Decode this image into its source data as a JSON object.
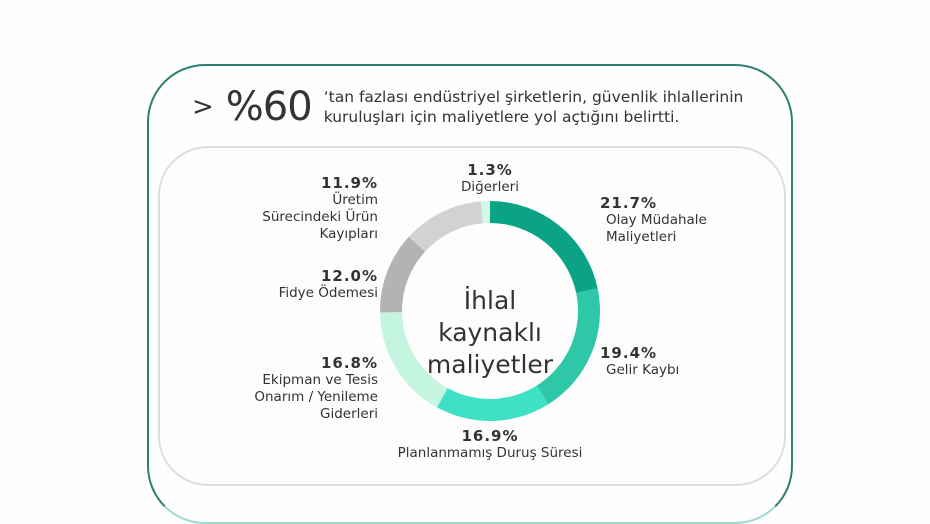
{
  "header": {
    "prefix": ">",
    "stat": "%60",
    "line1": "‘tan fazlası endüstriyel şirketlerin, güvenlik ihlallerinin",
    "line2": "kuruluşları için maliyetlere yol açtığını belirtti."
  },
  "center_label": {
    "line1": "İhlal",
    "line2": "kaynaklı",
    "line3": "maliyetler"
  },
  "labels": {
    "olay": {
      "value": "21.7%",
      "name1": "Olay Müdahale",
      "name2": "Maliyetleri"
    },
    "gelir": {
      "value": "19.4%",
      "name1": "Gelir Kaybı"
    },
    "plan": {
      "value": "16.9%",
      "name1": "Planlanmamış Duruş Süresi"
    },
    "ekip": {
      "value": "16.8%",
      "name1": "Ekipman ve Tesis",
      "name2": "Onarım / Yenileme",
      "name3": "Giderleri"
    },
    "fidye": {
      "value": "12.0%",
      "name1": "Fidye Ödemesi"
    },
    "uretim": {
      "value": "11.9%",
      "name1": "Üretim",
      "name2": "Sürecindeki Ürün",
      "name3": "Kayıpları"
    },
    "diger": {
      "value": "1.3%",
      "name1": "Diğerleri"
    }
  },
  "chart_data": {
    "type": "pie",
    "subtype": "donut",
    "title": "İhlal kaynaklı maliyetler",
    "categories": [
      "Olay Müdahale Maliyetleri",
      "Gelir Kaybı",
      "Planlanmamış Duruş Süresi",
      "Ekipman ve Tesis Onarım / Yenileme Giderleri",
      "Fidye Ödemesi",
      "Üretim Sürecindeki Ürün Kayıpları",
      "Diğerleri"
    ],
    "values": [
      21.7,
      19.4,
      16.9,
      16.8,
      12.0,
      11.9,
      1.3
    ],
    "colors": [
      "#0aa386",
      "#2ec7a8",
      "#3fe0c5",
      "#c3f5e0",
      "#b3b3b3",
      "#d2d2d2",
      "#d4f7ea"
    ],
    "unit": "%",
    "legend": "labels around ring",
    "start_angle": "12 o'clock, clockwise"
  }
}
